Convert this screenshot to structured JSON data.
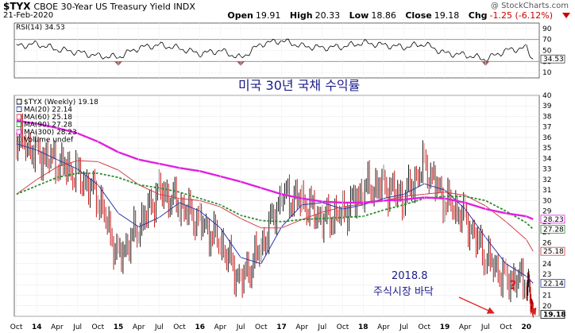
{
  "header": {
    "symbol": "$TYX",
    "description": "CBOE 30-Year US Treasury Yield INDX",
    "date": "21-Feb-2020",
    "watermark": "@ StockCharts.com",
    "open_label": "Open",
    "open": "19.91",
    "high_label": "High",
    "high": "20.33",
    "low_label": "Low",
    "low": "18.86",
    "close_label": "Close",
    "close": "19.18",
    "chg_label": "Chg",
    "chg": "-1.25 (-6.12%)"
  },
  "rsi_panel": {
    "legend": "RSI(14) 34.53",
    "ticks": [
      90,
      70,
      50,
      30,
      10
    ],
    "current_value": "34.53",
    "annotation": "미국 30년 국채 수익률"
  },
  "price_panel": {
    "legend": [
      {
        "text": "$TYX (Weekly) 19.18",
        "color": "#000000"
      },
      {
        "text": "MA(20) 22.14",
        "color": "#2a3aa8"
      },
      {
        "text": "MA(60) 25.18",
        "color": "#d0404a"
      },
      {
        "text": "MA(90) 27.28",
        "color": "#2e8b2e"
      },
      {
        "text": "MA(300) 28.23",
        "color": "#e020e0"
      },
      {
        "text": "Volume undef",
        "color": "#777777"
      }
    ],
    "y_ticks": [
      40,
      39,
      38,
      37,
      36,
      35,
      34,
      33,
      32,
      31,
      30,
      29,
      28,
      27,
      26,
      25,
      24,
      23,
      22,
      21,
      20,
      19
    ],
    "value_tags": [
      {
        "text": "28.23",
        "value": 28.23,
        "color": "#e020e0"
      },
      {
        "text": "27.28",
        "value": 27.28,
        "color": "#2e8b2e"
      },
      {
        "text": "25.18",
        "value": 25.18,
        "color": "#d0404a"
      },
      {
        "text": "22.14",
        "value": 22.14,
        "color": "#2a3aa8"
      },
      {
        "text": "19.18",
        "value": 19.18,
        "color": "#000000"
      }
    ],
    "annotation_date": "2018.8",
    "annotation_text": "주식시장 바닥",
    "question_mark": "?",
    "colors": {
      "price": "#c00000",
      "ma20": "#2a3aa8",
      "ma60": "#d0404a",
      "ma90": "#2e8b2e",
      "ma300": "#e020e0",
      "arrow": "#e02020",
      "annotation_text": "#1a1a8a"
    }
  },
  "x_axis": {
    "labels": [
      "Oct",
      "14",
      "Apr",
      "Jul",
      "Oct",
      "15",
      "Apr",
      "Jul",
      "Oct",
      "16",
      "Apr",
      "Jul",
      "Oct",
      "17",
      "Apr",
      "Jul",
      "Oct",
      "18",
      "Apr",
      "Jul",
      "Oct",
      "19",
      "Apr",
      "Jul",
      "Oct",
      "20"
    ],
    "bold_labels": [
      "14",
      "15",
      "16",
      "17",
      "18",
      "19",
      "20"
    ]
  },
  "chart_data": [
    {
      "type": "line",
      "title": "RSI(14) 34.53",
      "ylim": [
        0,
        100
      ],
      "ticks": [
        90,
        70,
        50,
        30,
        10
      ],
      "x_start": "2013-10",
      "x_end": "2020-02",
      "series": [
        {
          "name": "RSI(14)",
          "x": [
            "2013-10",
            "2014-01",
            "2014-04",
            "2014-07",
            "2014-10",
            "2015-01",
            "2015-04",
            "2015-07",
            "2015-10",
            "2016-01",
            "2016-04",
            "2016-07",
            "2016-10",
            "2017-01",
            "2017-04",
            "2017-07",
            "2017-10",
            "2018-01",
            "2018-04",
            "2018-07",
            "2018-10",
            "2019-01",
            "2019-04",
            "2019-07",
            "2019-10",
            "2020-01",
            "2020-02"
          ],
          "values": [
            58,
            62,
            52,
            47,
            40,
            38,
            55,
            60,
            54,
            44,
            50,
            36,
            62,
            68,
            58,
            55,
            57,
            64,
            60,
            56,
            62,
            45,
            42,
            34,
            50,
            55,
            34.53
          ]
        }
      ]
    },
    {
      "type": "line",
      "title": "$TYX (Weekly) 19.18",
      "ylim": [
        19,
        40
      ],
      "x_start": "2013-10",
      "x_end": "2020-02",
      "x": [
        "2013-10",
        "2014-01",
        "2014-04",
        "2014-07",
        "2014-10",
        "2015-01",
        "2015-04",
        "2015-07",
        "2015-10",
        "2016-01",
        "2016-04",
        "2016-07",
        "2016-10",
        "2017-01",
        "2017-04",
        "2017-07",
        "2017-10",
        "2018-01",
        "2018-04",
        "2018-07",
        "2018-10",
        "2019-01",
        "2019-04",
        "2019-07",
        "2019-10",
        "2020-01",
        "2020-02"
      ],
      "series": [
        {
          "name": "$TYX",
          "values": [
            36.0,
            34.5,
            33.6,
            32.5,
            30.4,
            24.6,
            27.4,
            31.0,
            29.6,
            28.0,
            26.0,
            22.3,
            25.5,
            30.5,
            30.0,
            28.2,
            28.8,
            31.0,
            31.5,
            30.2,
            33.5,
            30.0,
            28.4,
            24.6,
            22.5,
            22.5,
            19.18
          ]
        },
        {
          "name": "MA(20)",
          "values": [
            35.4,
            34.8,
            33.9,
            33.0,
            31.5,
            28.8,
            27.5,
            28.4,
            29.8,
            29.0,
            27.4,
            24.6,
            24.0,
            27.5,
            29.6,
            29.8,
            29.2,
            29.6,
            30.2,
            30.6,
            31.6,
            31.0,
            29.2,
            26.5,
            24.0,
            22.8,
            22.14
          ]
        },
        {
          "name": "MA(60)",
          "values": [
            30.6,
            32.0,
            33.2,
            33.8,
            33.7,
            32.9,
            31.5,
            30.6,
            30.2,
            30.0,
            29.4,
            28.3,
            27.4,
            27.4,
            28.2,
            28.9,
            29.4,
            29.7,
            30.0,
            30.4,
            30.6,
            30.8,
            30.5,
            29.5,
            28.0,
            26.3,
            25.18
          ]
        },
        {
          "name": "MA(90)",
          "values": [
            30.6,
            31.4,
            32.2,
            32.6,
            32.6,
            32.2,
            31.5,
            31.2,
            30.8,
            30.2,
            29.6,
            28.6,
            28.1,
            28.0,
            28.2,
            28.3,
            28.4,
            28.5,
            29.1,
            29.6,
            30.2,
            30.4,
            30.4,
            30.0,
            29.0,
            27.9,
            27.28
          ]
        },
        {
          "name": "MA(300)",
          "values": [
            37.6,
            37.3,
            36.9,
            36.4,
            35.6,
            34.6,
            33.9,
            33.5,
            33.1,
            32.8,
            32.3,
            31.8,
            31.2,
            30.6,
            30.2,
            29.9,
            29.8,
            29.8,
            30.0,
            30.1,
            30.3,
            30.2,
            29.8,
            29.2,
            28.8,
            28.5,
            28.23
          ]
        }
      ]
    }
  ]
}
